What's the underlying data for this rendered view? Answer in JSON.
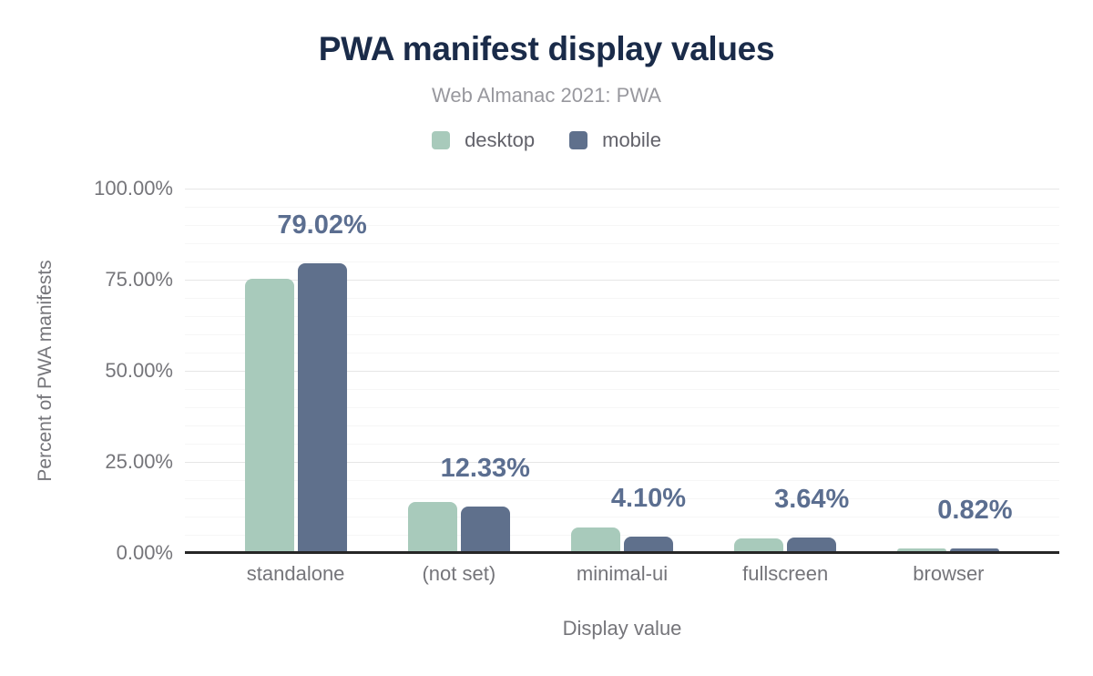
{
  "header": {
    "title": "PWA manifest display values",
    "subtitle": "Web Almanac 2021: PWA"
  },
  "colors": {
    "title": "#1a2b49",
    "subtitle": "#98989e",
    "legend_text": "#62626a",
    "axis_text": "#75757a",
    "data_label": "#5b6e90",
    "axis_line": "#262626",
    "grid_major": "#e6e6e6",
    "grid_minor": "#f6f6f6",
    "desktop": "#a8cabb",
    "mobile": "#5f708c"
  },
  "chart_data": {
    "type": "bar",
    "title": "PWA manifest display values",
    "subtitle": "Web Almanac 2021: PWA",
    "categories": [
      "standalone",
      "(not set)",
      "minimal-ui",
      "fullscreen",
      "browser"
    ],
    "series": [
      {
        "name": "desktop",
        "color": "#a8cabb",
        "values": [
          74.8,
          13.5,
          6.5,
          3.4,
          0.75
        ]
      },
      {
        "name": "mobile",
        "color": "#5f708c",
        "values": [
          79.02,
          12.33,
          4.1,
          3.64,
          0.82
        ],
        "data_labels": [
          "79.02%",
          "12.33%",
          "4.10%",
          "3.64%",
          "0.82%"
        ]
      }
    ],
    "xlabel": "Display value",
    "ylabel": "Percent of PWA manifests",
    "ylim": [
      0,
      100
    ],
    "y_ticks": [
      {
        "value": 100,
        "label": "100.00%"
      },
      {
        "value": 75,
        "label": "75.00%"
      },
      {
        "value": 50,
        "label": "50.00%"
      },
      {
        "value": 25,
        "label": "25.00%"
      },
      {
        "value": 0,
        "label": "0.00%"
      }
    ],
    "y_minor_step": 5,
    "grid": true,
    "legend_position": "top"
  }
}
